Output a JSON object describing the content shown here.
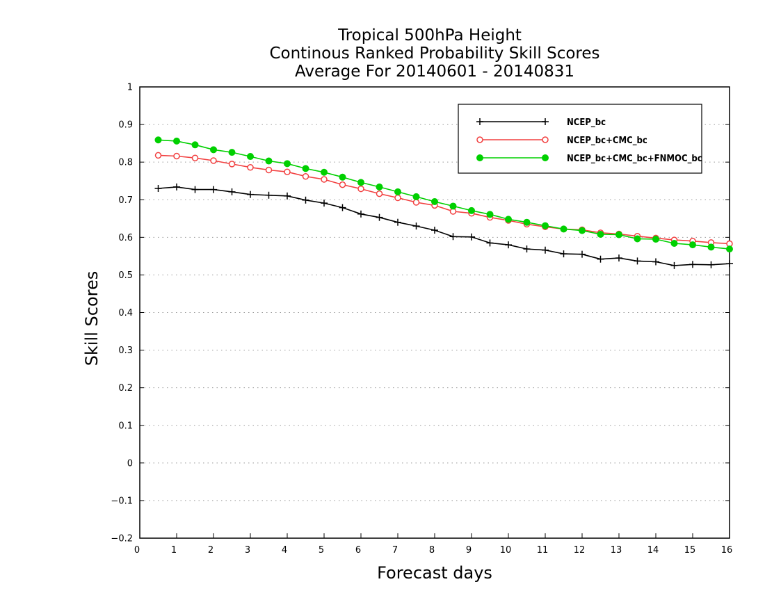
{
  "chart_data": {
    "type": "line",
    "title_lines": [
      "Tropical 500hPa Height",
      "Continous Ranked Probability Skill Scores",
      "Average For 20140601 - 20140831"
    ],
    "xlabel": "Forecast days",
    "ylabel": "Skill Scores",
    "xlim": [
      0,
      16
    ],
    "ylim": [
      -0.2,
      1
    ],
    "xticks": [
      "0",
      "1",
      "2",
      "3",
      "4",
      "5",
      "6",
      "7",
      "8",
      "9",
      "10",
      "11",
      "12",
      "13",
      "14",
      "15",
      "16"
    ],
    "yticks": [
      "1",
      "0.9",
      "0.8",
      "0.7",
      "0.6",
      "0.5",
      "0.4",
      "0.3",
      "0.2",
      "0.1",
      "0",
      "−0.1",
      "−0.2"
    ],
    "grid": "horizontal-dotted",
    "legend_position": "top-right",
    "x": [
      0.5,
      1,
      1.5,
      2,
      2.5,
      3,
      3.5,
      4,
      4.5,
      5,
      5.5,
      6,
      6.5,
      7,
      7.5,
      8,
      8.5,
      9,
      9.5,
      10,
      10.5,
      11,
      11.5,
      12,
      12.5,
      13,
      13.5,
      14,
      14.5,
      15,
      15.5,
      16
    ],
    "series": [
      {
        "name": "NCEP_bc",
        "color": "#000000",
        "marker": "plus",
        "values": [
          0.73,
          0.734,
          0.727,
          0.727,
          0.721,
          0.714,
          0.712,
          0.71,
          0.699,
          0.691,
          0.679,
          0.662,
          0.653,
          0.64,
          0.63,
          0.619,
          0.602,
          0.601,
          0.585,
          0.58,
          0.569,
          0.566,
          0.556,
          0.555,
          0.542,
          0.545,
          0.537,
          0.535,
          0.525,
          0.528,
          0.527,
          0.53
        ]
      },
      {
        "name": "NCEP_bc+CMC_bc",
        "color": "#f24040",
        "marker": "open-circle",
        "values": [
          0.818,
          0.816,
          0.811,
          0.804,
          0.795,
          0.786,
          0.779,
          0.774,
          0.762,
          0.754,
          0.74,
          0.729,
          0.716,
          0.705,
          0.693,
          0.685,
          0.669,
          0.664,
          0.653,
          0.645,
          0.635,
          0.628,
          0.622,
          0.62,
          0.612,
          0.609,
          0.603,
          0.598,
          0.593,
          0.59,
          0.586,
          0.583
        ]
      },
      {
        "name": "NCEP_bc+CMC_bc+FNMOC_bc",
        "color": "#00d000",
        "marker": "filled-circle",
        "values": [
          0.859,
          0.856,
          0.846,
          0.833,
          0.826,
          0.815,
          0.803,
          0.796,
          0.783,
          0.773,
          0.76,
          0.746,
          0.734,
          0.721,
          0.708,
          0.695,
          0.683,
          0.671,
          0.661,
          0.648,
          0.64,
          0.631,
          0.622,
          0.618,
          0.608,
          0.607,
          0.596,
          0.595,
          0.584,
          0.58,
          0.574,
          0.569
        ]
      }
    ]
  }
}
